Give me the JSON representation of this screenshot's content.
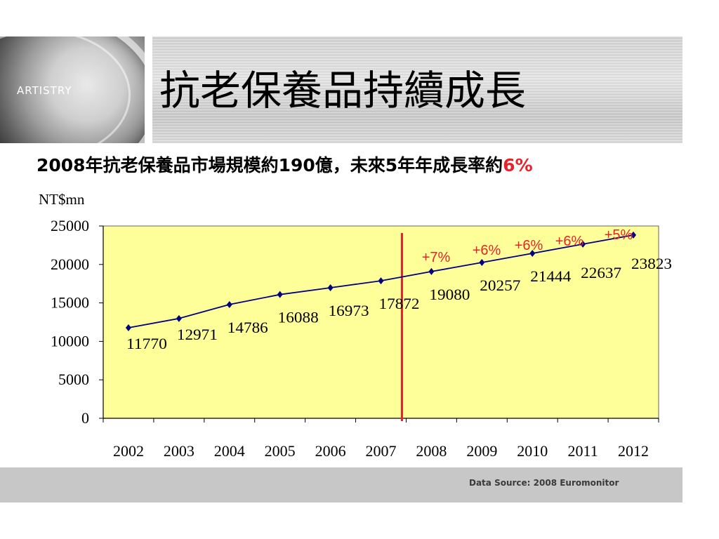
{
  "logo": {
    "text": "ARTISTRY"
  },
  "header": {
    "title": "抗老保養品持續成長"
  },
  "subtitle": {
    "prefix": "2008年抗老保養品市場規模約190億，未來5年年成長率約",
    "highlight": "6%"
  },
  "chart_data": {
    "type": "line",
    "ylabel": "NT$mn",
    "ylim": [
      0,
      25000
    ],
    "yticks": [
      0,
      5000,
      10000,
      15000,
      20000,
      25000
    ],
    "categories": [
      "2002",
      "2003",
      "2004",
      "2005",
      "2006",
      "2007",
      "2008",
      "2009",
      "2010",
      "2011",
      "2012"
    ],
    "series": [
      {
        "values": [
          11770,
          12971,
          14786,
          16088,
          16973,
          17872,
          19080,
          20257,
          21444,
          22637,
          23823
        ]
      }
    ],
    "growth_labels": [
      "+7%",
      "+6%",
      "+6%",
      "+6%",
      "+5%"
    ],
    "colors": {
      "plot_bg": "#ffff99",
      "line": "#000080",
      "divider": "#e8212b",
      "growth": "#e8212b"
    },
    "grid": false
  },
  "footer": {
    "source": "Data Source: 2008 Euromonitor"
  }
}
